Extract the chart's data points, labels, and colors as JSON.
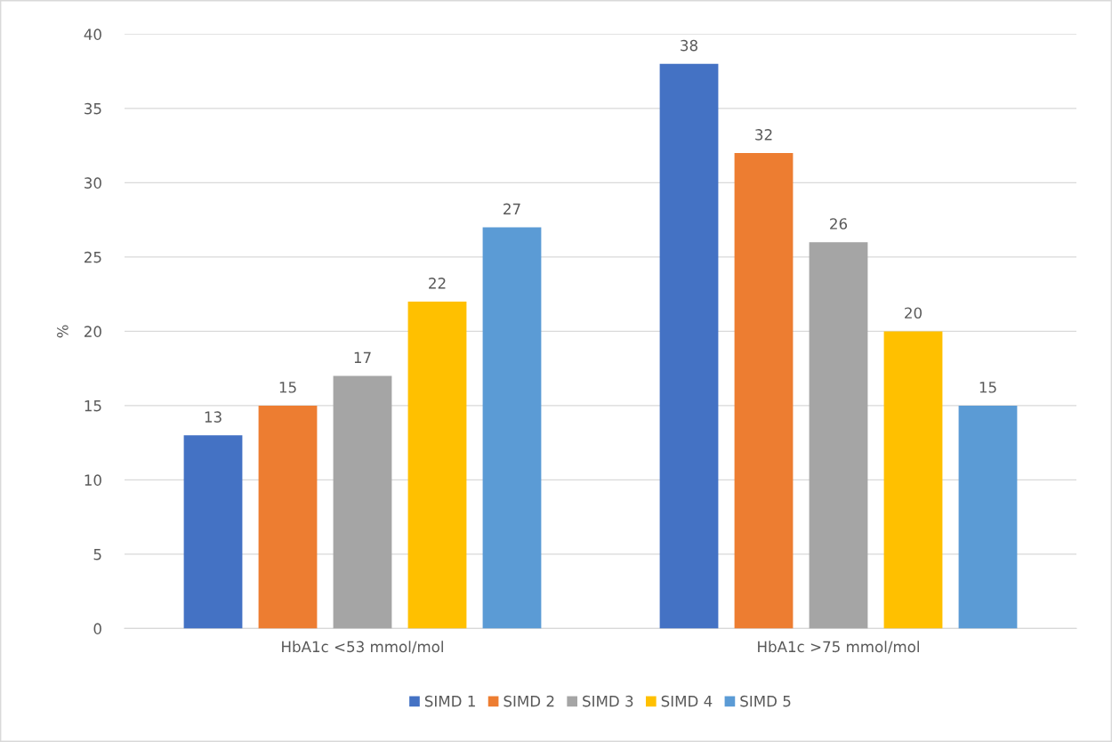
{
  "chart_data": {
    "type": "bar",
    "ylabel": "%",
    "categories": [
      "HbA1c <53 mmol/mol",
      "HbA1c >75 mmol/mol"
    ],
    "series": [
      {
        "name": "SIMD 1",
        "color": "#4472c4",
        "values": [
          13,
          38
        ]
      },
      {
        "name": "SIMD 2",
        "color": "#ed7d31",
        "values": [
          15,
          32
        ]
      },
      {
        "name": "SIMD 3",
        "color": "#a5a5a5",
        "values": [
          17,
          26
        ]
      },
      {
        "name": "SIMD 4",
        "color": "#ffc000",
        "values": [
          22,
          20
        ]
      },
      {
        "name": "SIMD 5",
        "color": "#5b9bd5",
        "values": [
          27,
          15
        ]
      }
    ],
    "ylim": [
      0,
      40
    ],
    "yticks": [
      0,
      5,
      10,
      15,
      20,
      25,
      30,
      35,
      40
    ],
    "grid": "y",
    "legend": "bottom",
    "data_labels": true
  }
}
